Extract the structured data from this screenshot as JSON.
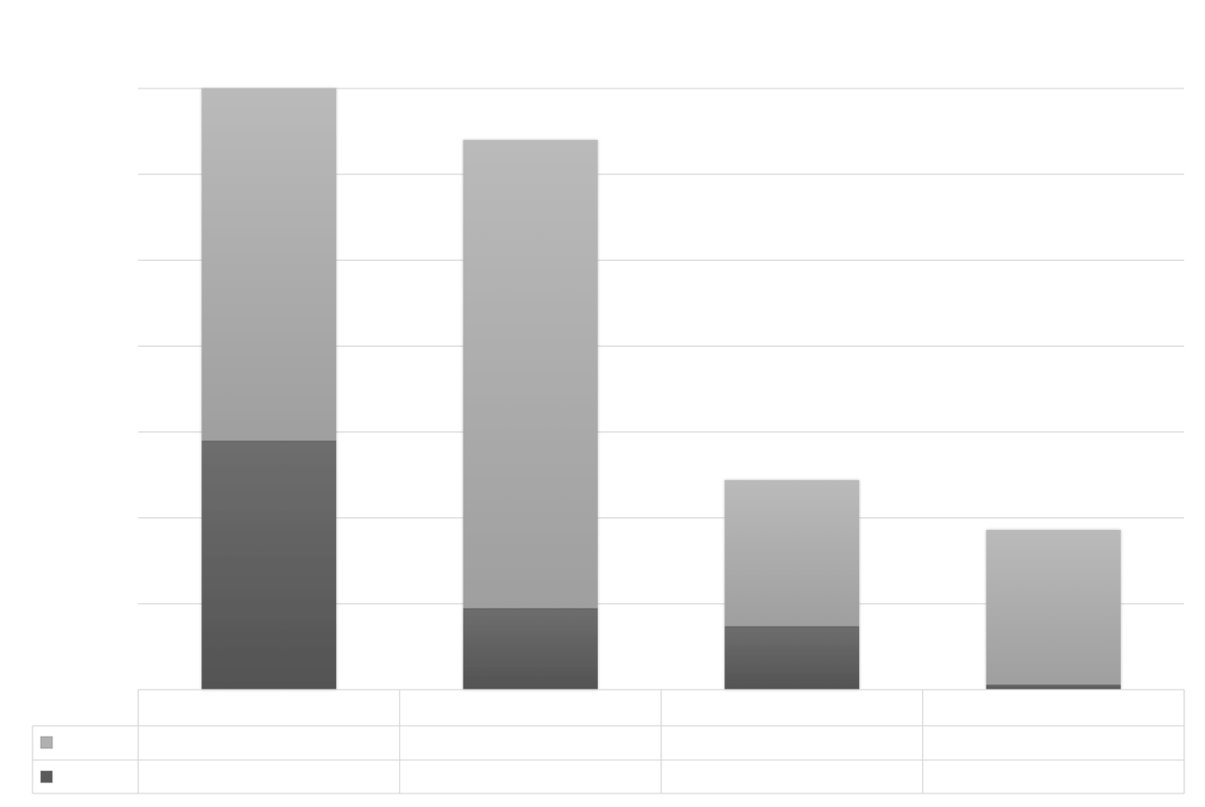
{
  "chart_data": {
    "type": "bar",
    "stacked": true,
    "categories": [
      "",
      "",
      "",
      ""
    ],
    "series": [
      {
        "name": "",
        "color": "#5a5a5a",
        "values": [
          2.9,
          0.95,
          0.74,
          0.06
        ]
      },
      {
        "name": "",
        "color": "#b0b0b0",
        "values": [
          4.1,
          5.45,
          1.7,
          1.8
        ]
      }
    ],
    "ylim": [
      0,
      7
    ],
    "ytick_step": 1,
    "grid": true,
    "legend": "data-table",
    "data_table": true,
    "title": "",
    "xlabel": "",
    "ylabel": ""
  }
}
